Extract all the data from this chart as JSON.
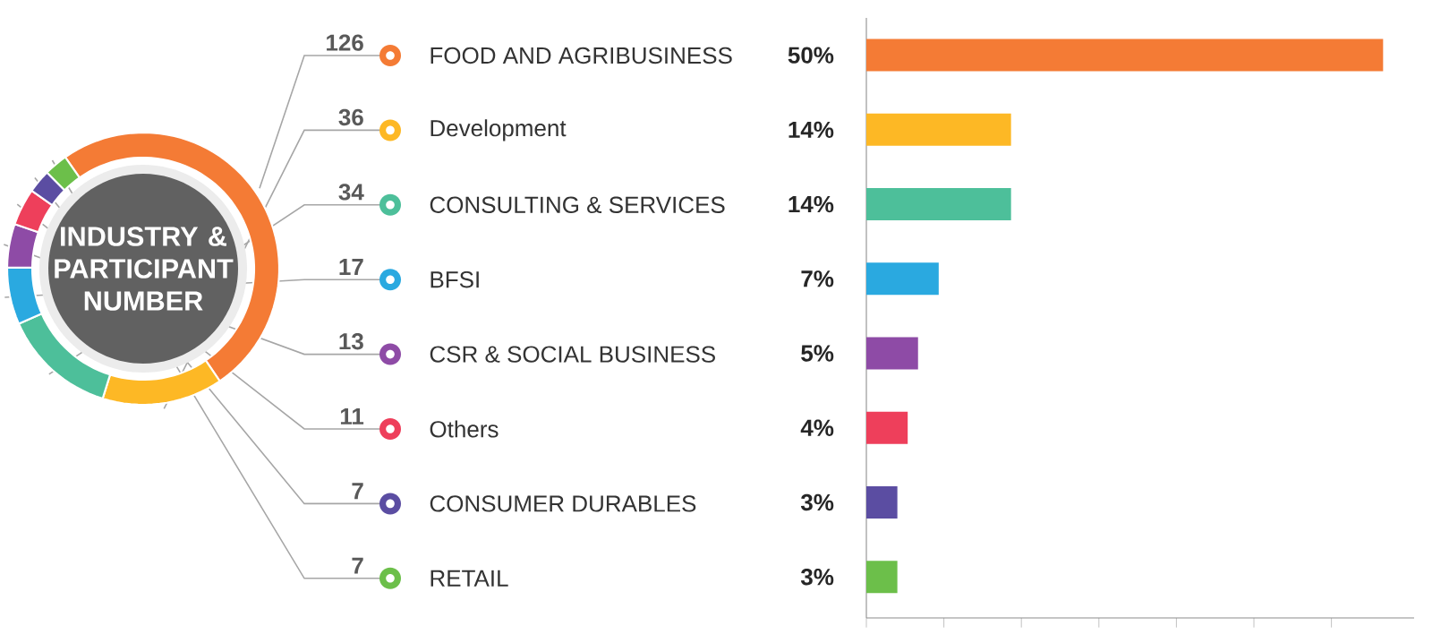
{
  "chart_data": [
    {
      "type": "donut",
      "title": "INDUSTRY & PARTICIPANT NUMBER",
      "categories": [
        "FOOD AND AGRIBUSINESS",
        "Development",
        "CONSULTING & SERVICES",
        "BFSI",
        "CSR & SOCIAL BUSINESS",
        "Others",
        "CONSUMER DURABLES",
        "RETAIL"
      ],
      "values": [
        126,
        36,
        34,
        17,
        13,
        11,
        7,
        7
      ],
      "colors": [
        "#f47b35",
        "#fdb825",
        "#4dbf9a",
        "#2aa9e0",
        "#8e4ba6",
        "#ee3f5b",
        "#5b4da2",
        "#6cbf4a"
      ],
      "data_labels": true,
      "legend": "right"
    },
    {
      "type": "bar",
      "orientation": "horizontal",
      "categories": [
        null,
        null,
        null,
        null,
        null,
        null,
        null,
        null
      ],
      "values": [
        50,
        14,
        14,
        7,
        5,
        4,
        3,
        3
      ],
      "value_labels": [
        "50%",
        "14%",
        "14%",
        "7%",
        "5%",
        "4%",
        "3%",
        "3%"
      ],
      "colors": [
        "#f47b35",
        "#fdb825",
        "#4dbf9a",
        "#2aa9e0",
        "#8e4ba6",
        "#ee3f5b",
        "#5b4da2",
        "#6cbf4a"
      ],
      "xlim": [
        0,
        53
      ],
      "xticks": [
        {
          "value": 0,
          "label": null
        },
        {
          "value": 7.5,
          "label": null
        },
        {
          "value": 15,
          "label": null
        },
        {
          "value": 22.5,
          "label": null
        },
        {
          "value": 30,
          "label": null
        },
        {
          "value": 37.5,
          "label": null
        },
        {
          "value": 45,
          "label": null
        }
      ]
    }
  ]
}
